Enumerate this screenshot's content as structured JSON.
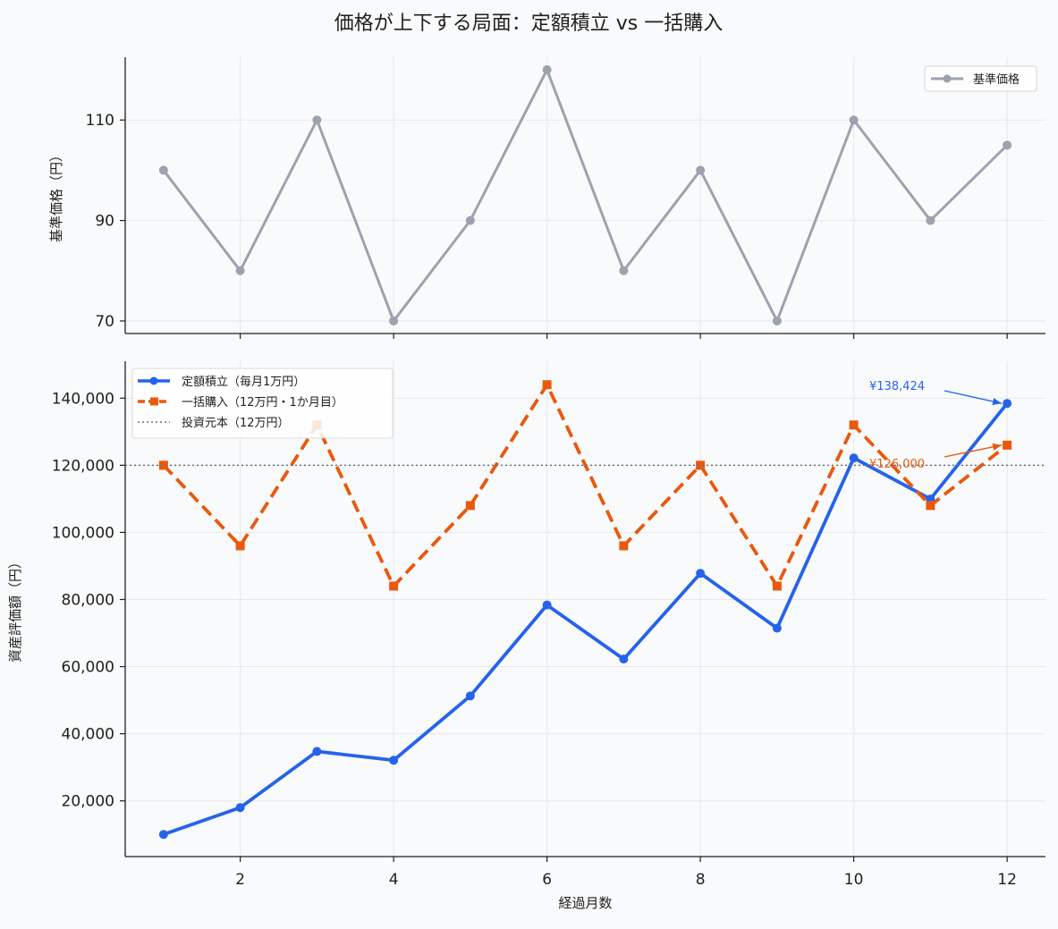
{
  "title": "価格が上下する局面：定額積立 vs 一括購入",
  "chart_data": [
    {
      "type": "line",
      "ylabel": "基準価格（円）",
      "xlabel": "",
      "xlim": [
        0.5,
        12.5
      ],
      "ylim": [
        67.5,
        122.5
      ],
      "xticks": [
        2,
        4,
        6,
        8,
        10,
        12
      ],
      "yticks": [
        70,
        90,
        110
      ],
      "grid": true,
      "legend_position": "top-right",
      "series": [
        {
          "name": "基準価格",
          "color": "#9ca3af",
          "x": [
            1,
            2,
            3,
            4,
            5,
            6,
            7,
            8,
            9,
            10,
            11,
            12
          ],
          "values": [
            100,
            80,
            110,
            70,
            90,
            120,
            80,
            100,
            70,
            110,
            90,
            105
          ]
        }
      ]
    },
    {
      "type": "line",
      "ylabel": "資産評価額（円）",
      "xlabel": "経過月数",
      "xlim": [
        0.5,
        12.5
      ],
      "ylim": [
        3400,
        151000
      ],
      "xticks": [
        2,
        4,
        6,
        8,
        10,
        12
      ],
      "yticks": [
        20000,
        40000,
        60000,
        80000,
        100000,
        120000,
        140000
      ],
      "grid": true,
      "legend_position": "top-left",
      "series": [
        {
          "name": "定額積立（毎月1万円）",
          "color": "#2563eb",
          "style": "solid",
          "marker": "circle",
          "x": [
            1,
            2,
            3,
            4,
            5,
            6,
            7,
            8,
            9,
            10,
            11,
            12
          ],
          "values": [
            10000,
            18000,
            34727,
            32100,
            51271,
            78362,
            62241,
            87802,
            71461,
            122170,
            109953,
            138424
          ]
        },
        {
          "name": "一括購入（12万円・1か月目）",
          "color": "#ea580c",
          "style": "dashed",
          "marker": "square",
          "x": [
            1,
            2,
            3,
            4,
            5,
            6,
            7,
            8,
            9,
            10,
            11,
            12
          ],
          "values": [
            120000,
            96000,
            132000,
            84000,
            108000,
            144000,
            96000,
            120000,
            84000,
            132000,
            108000,
            126000
          ]
        },
        {
          "name": "投資元本（12万円）",
          "color": "#6b7280",
          "style": "dotted",
          "hline": 120000
        }
      ],
      "annotations": [
        {
          "text": "¥138,424",
          "x": 12,
          "y": 138424,
          "color": "#2563eb"
        },
        {
          "text": "¥126,000",
          "x": 12,
          "y": 126000,
          "color": "#ea580c"
        }
      ]
    }
  ]
}
